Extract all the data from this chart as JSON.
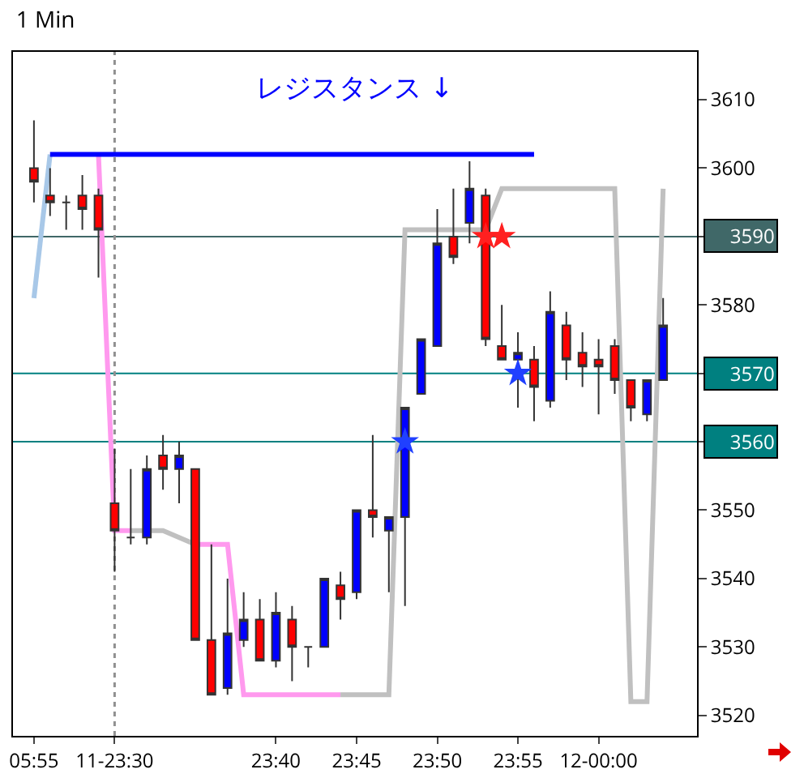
{
  "chart_data": {
    "type": "candlestick",
    "title": "1 Min",
    "categories": [
      "05:55",
      null,
      null,
      null,
      null,
      "11-23:30",
      null,
      null,
      null,
      null,
      null,
      null,
      null,
      null,
      null,
      "23:40",
      null,
      null,
      null,
      null,
      "23:45",
      null,
      null,
      null,
      null,
      "23:50",
      null,
      null,
      null,
      null,
      "23:55",
      null,
      null,
      null,
      null,
      "12-00:00",
      null,
      null,
      null,
      null
    ],
    "ohlc": [
      [
        3600,
        3607,
        3595,
        3598
      ],
      [
        3596,
        3600,
        3593,
        3595
      ],
      [
        3595,
        3596,
        3591,
        3595
      ],
      [
        3596,
        3599,
        3591,
        3594
      ],
      [
        3596,
        3597,
        3584,
        3591
      ],
      [
        3551,
        3559,
        3541,
        3547
      ],
      [
        3546,
        3556,
        3545,
        3546
      ],
      [
        3546,
        3558,
        3545,
        3556
      ],
      [
        3558,
        3561,
        3553,
        3556
      ],
      [
        3556,
        3560,
        3551,
        3558
      ],
      [
        3556,
        3556,
        3531,
        3531
      ],
      [
        3531,
        3545,
        3523,
        3523
      ],
      [
        3524,
        3540,
        3523,
        3532
      ],
      [
        3531,
        3538,
        3530,
        3534
      ],
      [
        3534,
        3537,
        3528,
        3528
      ],
      [
        3528,
        3538,
        3527,
        3535
      ],
      [
        3534,
        3536,
        3525,
        3530
      ],
      [
        3530,
        3530,
        3527,
        3530
      ],
      [
        3530,
        3540,
        3530,
        3540
      ],
      [
        3539,
        3541,
        3534,
        3537
      ],
      [
        3538,
        3550,
        3537,
        3550
      ],
      [
        3550,
        3561,
        3546,
        3549
      ],
      [
        3547,
        3549,
        3538,
        3549
      ],
      [
        3549,
        3565,
        3536,
        3565
      ],
      [
        3567,
        3575,
        3567,
        3575
      ],
      [
        3574,
        3594,
        3574,
        3589
      ],
      [
        3590,
        3597,
        3586,
        3587
      ],
      [
        3592,
        3601,
        3589,
        3597
      ],
      [
        3596,
        3597,
        3574,
        3575
      ],
      [
        3574,
        3580,
        3572,
        3572
      ],
      [
        3572,
        3576,
        3565,
        3573
      ],
      [
        3572,
        3574,
        3563,
        3568
      ],
      [
        3566,
        3582,
        3565,
        3579
      ],
      [
        3577,
        3579,
        3569,
        3572
      ],
      [
        3573,
        3576,
        3568,
        3571
      ],
      [
        3572,
        3575,
        3564,
        3571
      ],
      [
        3574,
        3575,
        3567,
        3569
      ],
      [
        3569,
        3569,
        3563,
        3565
      ],
      [
        3564,
        3569,
        3563,
        3569
      ],
      [
        3569,
        3581,
        3569,
        3577
      ]
    ],
    "colors": [
      "#ff0000",
      "#ff0000",
      "#333333",
      "#ff0000",
      "#ff0000",
      "#ff0000",
      "#333333",
      "#0000ff",
      "#ff0000",
      "#0000ff",
      "#ff0000",
      "#ff0000",
      "#0000ff",
      "#0000ff",
      "#ff0000",
      "#0000ff",
      "#ff0000",
      "#333333",
      "#0000ff",
      "#ff0000",
      "#0000ff",
      "#ff0000",
      "#0000ff",
      "#0000ff",
      "#0000ff",
      "#0000ff",
      "#ff0000",
      "#0000ff",
      "#ff0000",
      "#ff0000",
      "#0000ff",
      "#ff0000",
      "#0000ff",
      "#ff0000",
      "#ff0000",
      "#ff0000",
      "#ff0000",
      "#ff0000",
      "#0000ff",
      "#0000ff"
    ],
    "series": [
      {
        "type": "line",
        "color": "#a8c8e8",
        "values": [
          3581,
          3602,
          null,
          null,
          null,
          null,
          null,
          null,
          null,
          null,
          null,
          null,
          null,
          null,
          null,
          null,
          null,
          null,
          null,
          null,
          null,
          null,
          null,
          null,
          null,
          null,
          null,
          null,
          null,
          null,
          null,
          null,
          null,
          null,
          null,
          null,
          null,
          null,
          null,
          null
        ]
      },
      {
        "type": "line",
        "color": "#ff99ee",
        "values": [
          null,
          null,
          null,
          null,
          3602,
          3547,
          3547,
          null,
          null,
          null,
          3545,
          3545,
          3545,
          3523,
          3523,
          3523,
          3523,
          3523,
          3523,
          3523,
          null,
          null,
          null,
          null,
          null,
          null,
          null,
          null,
          null,
          null,
          null,
          null,
          null,
          null,
          null,
          null,
          null,
          null,
          null,
          null
        ]
      },
      {
        "type": "line",
        "color": "#c0c0c0",
        "values": [
          null,
          null,
          null,
          null,
          null,
          null,
          3547,
          3547,
          3547,
          3546,
          3545,
          null,
          null,
          null,
          null,
          null,
          null,
          null,
          null,
          3523,
          3523,
          3523,
          3523,
          3591,
          3591,
          3591,
          3591,
          3591,
          3591,
          3597,
          3597,
          3597,
          3597,
          3597,
          3597,
          3597,
          3597,
          3522,
          3522,
          3597
        ]
      },
      {
        "type": "line",
        "color": "#0000ff",
        "values": [
          null,
          3602,
          3602,
          3602,
          3602,
          3602,
          3602,
          3602,
          3602,
          3602,
          3602,
          3602,
          3602,
          3602,
          3602,
          3602,
          3602,
          3602,
          3602,
          3602,
          3602,
          3602,
          3602,
          3602,
          3602,
          3602,
          3602,
          3602,
          3602,
          3602,
          3602,
          3602,
          null,
          null,
          null,
          null,
          null,
          null,
          null,
          null
        ]
      },
      {
        "type": "scatter",
        "marker": "star",
        "color": "#ff2020",
        "values": [
          null,
          null,
          null,
          null,
          null,
          null,
          null,
          null,
          null,
          null,
          null,
          null,
          null,
          null,
          null,
          null,
          null,
          null,
          null,
          null,
          null,
          null,
          null,
          null,
          null,
          null,
          null,
          null,
          3590,
          3590,
          null,
          null,
          null,
          null,
          null,
          null,
          null,
          null,
          null,
          null
        ]
      },
      {
        "type": "scatter",
        "marker": "star",
        "color": "#2040ff",
        "values": [
          null,
          null,
          null,
          null,
          null,
          null,
          null,
          null,
          null,
          null,
          null,
          null,
          null,
          null,
          null,
          null,
          null,
          null,
          null,
          null,
          null,
          null,
          null,
          3560,
          null,
          null,
          null,
          null,
          null,
          null,
          3570,
          null,
          null,
          null,
          null,
          null,
          null,
          null,
          null,
          null
        ]
      }
    ],
    "ylim": [
      3517,
      3617
    ],
    "yticks": [
      3610,
      3600,
      {
        "value": 3590,
        "label": null
      },
      3580,
      {
        "value": 3570,
        "label": null
      },
      {
        "value": 3560,
        "label": null
      },
      3550,
      3540,
      3530,
      3520
    ],
    "ref_lines": [
      {
        "axis": "y",
        "value": 3590,
        "label": "3590",
        "color": "#406868"
      },
      {
        "axis": "y",
        "value": 3570,
        "label": "3570",
        "color": "#008080"
      },
      {
        "axis": "y",
        "value": 3560,
        "label": "3560",
        "color": "#008080"
      },
      {
        "axis": "x",
        "value": "11-23:30",
        "color": "#909090",
        "line_style": "dotted"
      }
    ],
    "annotations": [
      "レジスタンス ↓"
    ],
    "grid": false
  }
}
